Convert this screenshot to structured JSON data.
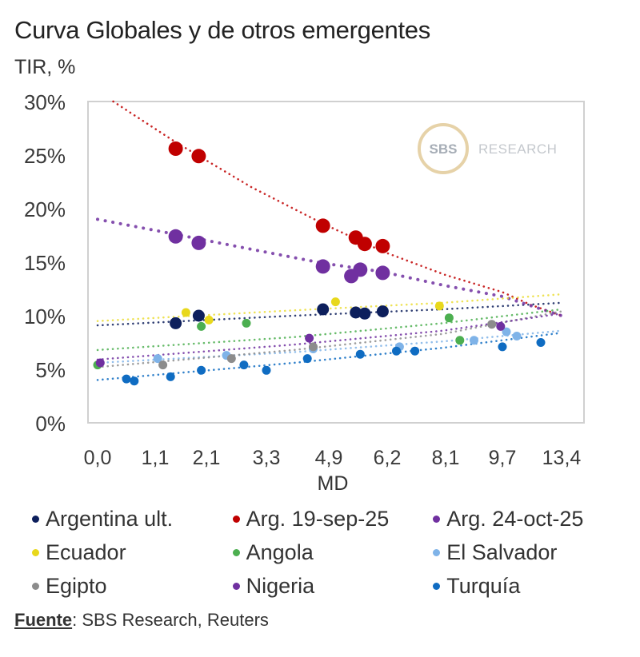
{
  "title": "Curva Globales y de otros emergentes",
  "y_unit_label": "TIR, %",
  "source": {
    "label": "Fuente",
    "text": ": SBS Research, Reuters"
  },
  "watermark": {
    "circle_text": "SBS",
    "text": "RESEARCH"
  },
  "chart_data": {
    "type": "scatter",
    "title": "Curva Globales y de otros emergentes",
    "xlabel": "MD",
    "ylabel": "TIR, %",
    "ylim": [
      0,
      30
    ],
    "yticks": [
      "0%",
      "5%",
      "10%",
      "15%",
      "20%",
      "25%",
      "30%"
    ],
    "ytick_values": [
      0,
      5,
      10,
      15,
      20,
      25,
      30
    ],
    "xticks": [
      "0,0",
      "1,1",
      "2,1",
      "3,3",
      "4,9",
      "6,2",
      "8,1",
      "9,7",
      "13,4"
    ],
    "xtick_values": [
      0.0,
      1.1,
      2.1,
      3.3,
      4.9,
      6.2,
      8.1,
      9.7,
      13.4
    ],
    "grid": false,
    "legend_position": "bottom",
    "trendlines": "dotted fitted curves per series",
    "series": [
      {
        "name": "Argentina ult.",
        "color": "#0d1f5c",
        "size": "medium",
        "points": [
          [
            1.5,
            9.3
          ],
          [
            1.95,
            10.0
          ],
          [
            4.75,
            10.6
          ],
          [
            5.5,
            10.3
          ],
          [
            5.7,
            10.2
          ],
          [
            6.1,
            10.4
          ]
        ],
        "trend": [
          [
            0.0,
            9.1
          ],
          [
            4.0,
            10.0
          ],
          [
            8.0,
            10.6
          ],
          [
            13.4,
            11.2
          ]
        ]
      },
      {
        "name": "Arg. 19-sep-25",
        "color": "#c00000",
        "size": "large",
        "points": [
          [
            1.5,
            25.6
          ],
          [
            1.95,
            24.9
          ],
          [
            4.75,
            18.4
          ],
          [
            5.5,
            17.3
          ],
          [
            5.7,
            16.7
          ],
          [
            6.1,
            16.5
          ]
        ],
        "trend": [
          [
            0.3,
            30.0
          ],
          [
            1.5,
            26.2
          ],
          [
            3.0,
            22.0
          ],
          [
            4.75,
            18.6
          ],
          [
            6.1,
            16.0
          ],
          [
            8.1,
            13.8
          ],
          [
            9.7,
            12.2
          ],
          [
            11.5,
            11.0
          ],
          [
            13.4,
            10.0
          ]
        ]
      },
      {
        "name": "Arg. 24-oct-25",
        "color": "#7030a0",
        "size": "large",
        "points": [
          [
            1.5,
            17.4
          ],
          [
            1.95,
            16.8
          ],
          [
            4.75,
            14.6
          ],
          [
            5.4,
            13.7
          ],
          [
            5.6,
            14.3
          ],
          [
            6.1,
            14.0
          ]
        ],
        "trend": [
          [
            0.0,
            19.0
          ],
          [
            1.5,
            17.6
          ],
          [
            3.0,
            16.2
          ],
          [
            4.75,
            14.9
          ],
          [
            6.1,
            14.1
          ],
          [
            8.1,
            12.8
          ],
          [
            9.7,
            11.8
          ],
          [
            13.4,
            10.0
          ]
        ]
      },
      {
        "name": "Ecuador",
        "color": "#e8d81c",
        "size": "small",
        "points": [
          [
            1.7,
            10.3
          ],
          [
            2.15,
            9.6
          ],
          [
            5.05,
            11.3
          ],
          [
            7.9,
            10.9
          ]
        ],
        "trend": [
          [
            0.0,
            9.5
          ],
          [
            4.0,
            10.5
          ],
          [
            8.0,
            11.2
          ],
          [
            13.4,
            12.0
          ]
        ]
      },
      {
        "name": "Angola",
        "color": "#4caf50",
        "size": "small",
        "points": [
          [
            0.0,
            5.4
          ],
          [
            2.0,
            9.0
          ],
          [
            2.9,
            9.3
          ],
          [
            8.2,
            9.8
          ],
          [
            8.5,
            7.7
          ]
        ],
        "trend": [
          [
            0.0,
            6.8
          ],
          [
            4.0,
            8.0
          ],
          [
            8.0,
            9.3
          ],
          [
            13.4,
            10.6
          ]
        ]
      },
      {
        "name": "El Salvador",
        "color": "#7fb3e8",
        "size": "small",
        "points": [
          [
            1.15,
            6.0
          ],
          [
            2.5,
            6.3
          ],
          [
            4.5,
            6.9
          ],
          [
            6.6,
            7.1
          ],
          [
            8.9,
            7.7
          ],
          [
            9.95,
            8.5
          ],
          [
            10.6,
            8.1
          ]
        ],
        "trend": [
          [
            0.0,
            5.6
          ],
          [
            4.0,
            6.6
          ],
          [
            8.0,
            7.6
          ],
          [
            13.4,
            8.6
          ]
        ]
      },
      {
        "name": "Egipto",
        "color": "#8c8c8c",
        "size": "small",
        "points": [
          [
            1.25,
            5.4
          ],
          [
            2.6,
            6.0
          ],
          [
            4.5,
            7.1
          ],
          [
            9.4,
            9.2
          ]
        ],
        "trend": [
          [
            0.0,
            5.2
          ],
          [
            4.0,
            6.8
          ],
          [
            8.0,
            8.3
          ],
          [
            13.4,
            10.4
          ]
        ]
      },
      {
        "name": "Nigeria",
        "color": "#7030a0",
        "size": "small",
        "points": [
          [
            0.05,
            5.6
          ],
          [
            4.4,
            7.9
          ],
          [
            9.65,
            9.0
          ]
        ],
        "trend": [
          [
            0.0,
            5.9
          ],
          [
            4.0,
            7.3
          ],
          [
            8.0,
            8.6
          ],
          [
            13.4,
            10.2
          ]
        ]
      },
      {
        "name": "Turquía",
        "color": "#0f6cc2",
        "size": "small",
        "points": [
          [
            0.55,
            4.1
          ],
          [
            0.7,
            3.9
          ],
          [
            1.4,
            4.3
          ],
          [
            2.0,
            4.9
          ],
          [
            2.85,
            5.4
          ],
          [
            3.3,
            4.9
          ],
          [
            4.35,
            6.0
          ],
          [
            5.6,
            6.4
          ],
          [
            6.5,
            6.7
          ],
          [
            7.1,
            6.7
          ],
          [
            9.7,
            7.1
          ],
          [
            12.1,
            7.5
          ]
        ],
        "trend": [
          [
            0.0,
            4.0
          ],
          [
            4.0,
            5.6
          ],
          [
            8.0,
            7.0
          ],
          [
            13.4,
            8.4
          ]
        ]
      }
    ]
  }
}
